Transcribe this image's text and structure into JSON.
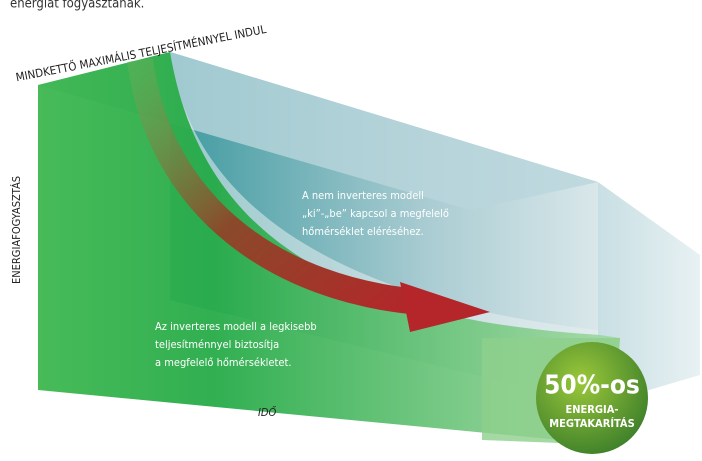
{
  "header": {
    "text": "energiát fogyasztanak."
  },
  "diagram": {
    "top_label": "MINDKETTŐ MAXIMÁLIS TELJESÍTMÉNNYEL INDUL",
    "y_label": "ENERGIAFOGYASZTÁS",
    "x_label": "IDŐ",
    "non_inverter": [
      "A nem inverteres modell",
      "„ki”-„be” kapcsol a megfelelő",
      "hőmérséklet eléréséhez."
    ],
    "inverter": [
      "Az inverteres modell a legkisebb",
      "teljesítménnyel biztosítja",
      "a megfelelő hőmérsékletet."
    ],
    "badge": {
      "big": "50%-os",
      "line1": "ENERGIA-",
      "line2": "MEGTAKARÍTÁS"
    }
  }
}
